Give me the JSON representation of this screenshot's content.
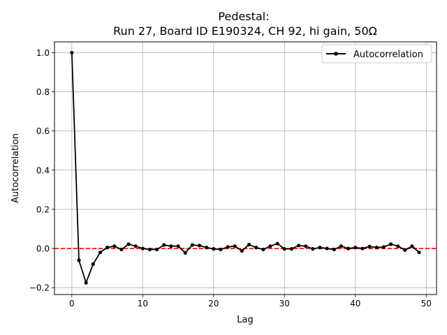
{
  "chart_data": {
    "type": "line",
    "title_line1": "Pedestal:",
    "title_line2": "Run 27, Board ID E190324, CH 92, hi gain, 50Ω",
    "xlabel": "Lag",
    "ylabel": "Autocorrelation",
    "xlim": [
      -2.45,
      51.45
    ],
    "ylim": [
      -0.235,
      1.055
    ],
    "x_ticks": [
      0,
      10,
      20,
      30,
      40,
      50
    ],
    "y_ticks": [
      -0.2,
      0.0,
      0.2,
      0.4,
      0.6,
      0.8,
      1.0
    ],
    "y_tick_labels": [
      "−0.2",
      "0.0",
      "0.2",
      "0.4",
      "0.6",
      "0.8",
      "1.0"
    ],
    "grid": true,
    "legend_position": "top-right",
    "reference_line": {
      "y": 0.0,
      "color": "#ff0000",
      "style": "dashed"
    },
    "series": [
      {
        "name": "Autocorrelation",
        "color": "#000000",
        "marker": "circle",
        "x": [
          0,
          1,
          2,
          3,
          4,
          5,
          6,
          7,
          8,
          9,
          10,
          11,
          12,
          13,
          14,
          15,
          16,
          17,
          18,
          19,
          20,
          21,
          22,
          23,
          24,
          25,
          26,
          27,
          28,
          29,
          30,
          31,
          32,
          33,
          34,
          35,
          36,
          37,
          38,
          39,
          40,
          41,
          42,
          43,
          44,
          45,
          46,
          47,
          48,
          49
        ],
        "values": [
          1.0,
          -0.06,
          -0.175,
          -0.08,
          -0.02,
          0.005,
          0.012,
          -0.005,
          0.022,
          0.012,
          0.0,
          -0.005,
          -0.005,
          0.018,
          0.012,
          0.012,
          -0.022,
          0.018,
          0.015,
          0.005,
          -0.002,
          -0.005,
          0.008,
          0.012,
          -0.012,
          0.02,
          0.005,
          -0.005,
          0.012,
          0.025,
          -0.002,
          -0.002,
          0.015,
          0.012,
          -0.002,
          0.005,
          0.0,
          -0.005,
          0.012,
          0.0,
          0.005,
          0.0,
          0.01,
          0.005,
          0.008,
          0.022,
          0.012,
          -0.008,
          0.012,
          -0.02
        ]
      }
    ]
  }
}
